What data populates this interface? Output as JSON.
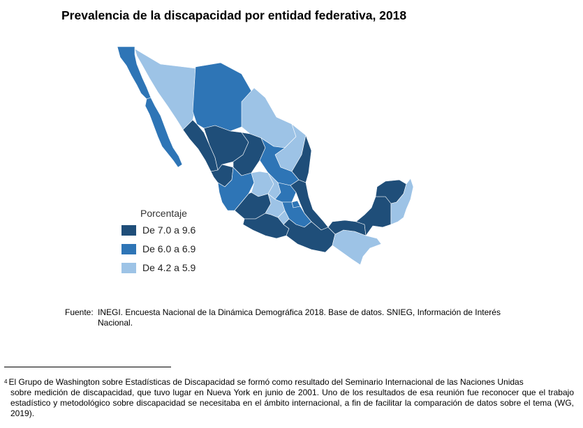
{
  "title": "Prevalencia de la discapacidad por entidad federativa, 2018",
  "legend": {
    "title": "Porcentaje",
    "items": [
      {
        "label": "De 7.0 a 9.6",
        "color": "#1f4e79"
      },
      {
        "label": "De 6.0 a 6.9",
        "color": "#2e75b6"
      },
      {
        "label": "De 4.2 a 5.9",
        "color": "#9dc3e6"
      }
    ]
  },
  "source": {
    "label": "Fuente:",
    "line1": "INEGI. Encuesta Nacional de la Dinámica Demográfica 2018. Base de datos. SNIEG, Información de Interés",
    "line2": "Nacional."
  },
  "footnote": {
    "number": "4",
    "first": "El Grupo de Washington sobre Estadísticas de Discapacidad se formó como resultado del Seminario Internacional de las Naciones Unidas",
    "rest": "sobre medición de discapacidad, que tuvo lugar en Nueva York en junio de 2001. Uno de los resultados de esa reunión fue reconocer que el trabajo estadístico y metodológico sobre discapacidad se necesitaba en el ámbito internacional, a fin de facilitar la comparación de datos sobre el tema (WG, 2019)."
  },
  "map_regions": [
    {
      "name": "baja-california",
      "cls": "mid"
    },
    {
      "name": "baja-california-sur",
      "cls": "mid"
    },
    {
      "name": "sonora",
      "cls": "light"
    },
    {
      "name": "chihuahua",
      "cls": "mid"
    },
    {
      "name": "coahuila",
      "cls": "light"
    },
    {
      "name": "nuevo-leon",
      "cls": "light"
    },
    {
      "name": "sinaloa",
      "cls": "dark"
    },
    {
      "name": "durango",
      "cls": "dark"
    },
    {
      "name": "zacatecas",
      "cls": "dark"
    },
    {
      "name": "tamaulipas",
      "cls": "dark"
    },
    {
      "name": "san-luis-potosi",
      "cls": "mid"
    },
    {
      "name": "nayarit",
      "cls": "dark"
    },
    {
      "name": "jalisco",
      "cls": "mid"
    },
    {
      "name": "guanajuato",
      "cls": "light"
    },
    {
      "name": "queretaro",
      "cls": "light"
    },
    {
      "name": "hidalgo",
      "cls": "mid"
    },
    {
      "name": "veracruz",
      "cls": "dark"
    },
    {
      "name": "michoacan",
      "cls": "dark"
    },
    {
      "name": "guerrero",
      "cls": "dark"
    },
    {
      "name": "oaxaca",
      "cls": "dark"
    },
    {
      "name": "chiapas",
      "cls": "light"
    },
    {
      "name": "tabasco",
      "cls": "dark"
    },
    {
      "name": "campeche",
      "cls": "dark"
    },
    {
      "name": "yucatan",
      "cls": "dark"
    },
    {
      "name": "quintana-roo",
      "cls": "light"
    },
    {
      "name": "puebla",
      "cls": "mid"
    },
    {
      "name": "mexico",
      "cls": "light"
    },
    {
      "name": "morelos",
      "cls": "light"
    },
    {
      "name": "tlaxcala",
      "cls": "mid"
    }
  ]
}
